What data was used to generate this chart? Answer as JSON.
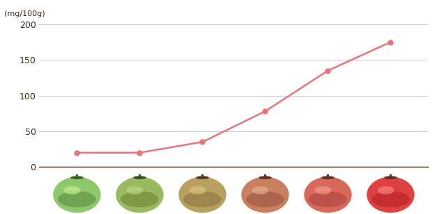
{
  "x": [
    1,
    2,
    3,
    4,
    5,
    6
  ],
  "y": [
    20,
    20,
    35,
    78,
    135,
    175
  ],
  "ylim": [
    0,
    210
  ],
  "yticks": [
    0,
    50,
    100,
    150,
    200
  ],
  "ylabel": "(mg/100g)",
  "line_color": "#e8747a",
  "marker_color": "#e8747a",
  "bg_color": "#ffffff",
  "grid_color": "#cccccc",
  "tick_color": "#3a2a1a",
  "bottom_bg": "#1a1a1a",
  "tomato_data": [
    {
      "body": "#8dc86a",
      "highlight": "#c8f090",
      "shadow": "#5a8840",
      "calyx": "#3a6020"
    },
    {
      "body": "#9aba60",
      "highlight": "#c0d888",
      "shadow": "#6a8030",
      "calyx": "#3a5020"
    },
    {
      "body": "#b8a060",
      "highlight": "#d8c880",
      "shadow": "#887040",
      "calyx": "#503820"
    },
    {
      "body": "#c88060",
      "highlight": "#e8b090",
      "shadow": "#985040",
      "calyx": "#603020"
    },
    {
      "body": "#d86858",
      "highlight": "#f0a090",
      "shadow": "#a84040",
      "calyx": "#603020"
    },
    {
      "body": "#e04040",
      "highlight": "#f88880",
      "shadow": "#b02020",
      "calyx": "#603020"
    }
  ]
}
